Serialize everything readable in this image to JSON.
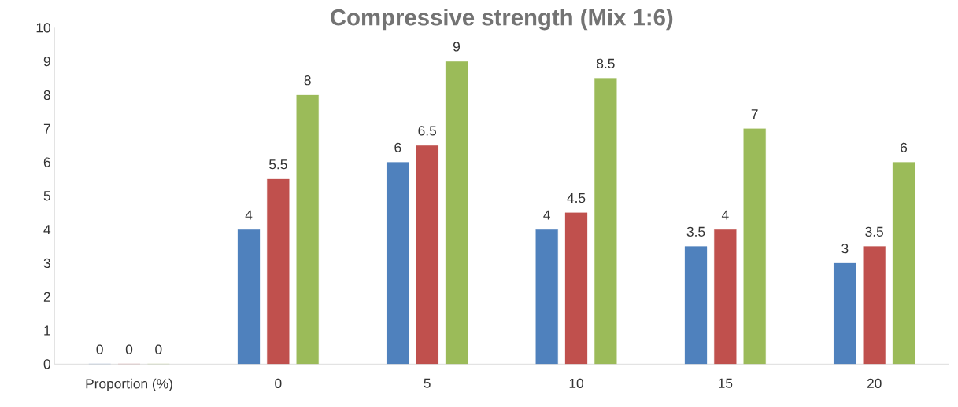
{
  "chart_data": {
    "type": "bar",
    "title": "Compressive strength     (Mix 1:6)",
    "categories": [
      "Proportion (%)",
      "0",
      "5",
      "10",
      "15",
      "20"
    ],
    "series": [
      {
        "color": "#4f81bd",
        "values": [
          0,
          4,
          6,
          4,
          3.5,
          3
        ]
      },
      {
        "color": "#c0504d",
        "values": [
          0,
          5.5,
          6.5,
          4.5,
          4,
          3.5
        ]
      },
      {
        "color": "#9bbb59",
        "values": [
          0,
          8,
          9,
          8.5,
          7,
          6
        ]
      }
    ],
    "ylim": [
      0,
      10
    ],
    "yticks": [
      0,
      1,
      2,
      3,
      4,
      5,
      6,
      7,
      8,
      9,
      10
    ],
    "data_labels": true
  }
}
